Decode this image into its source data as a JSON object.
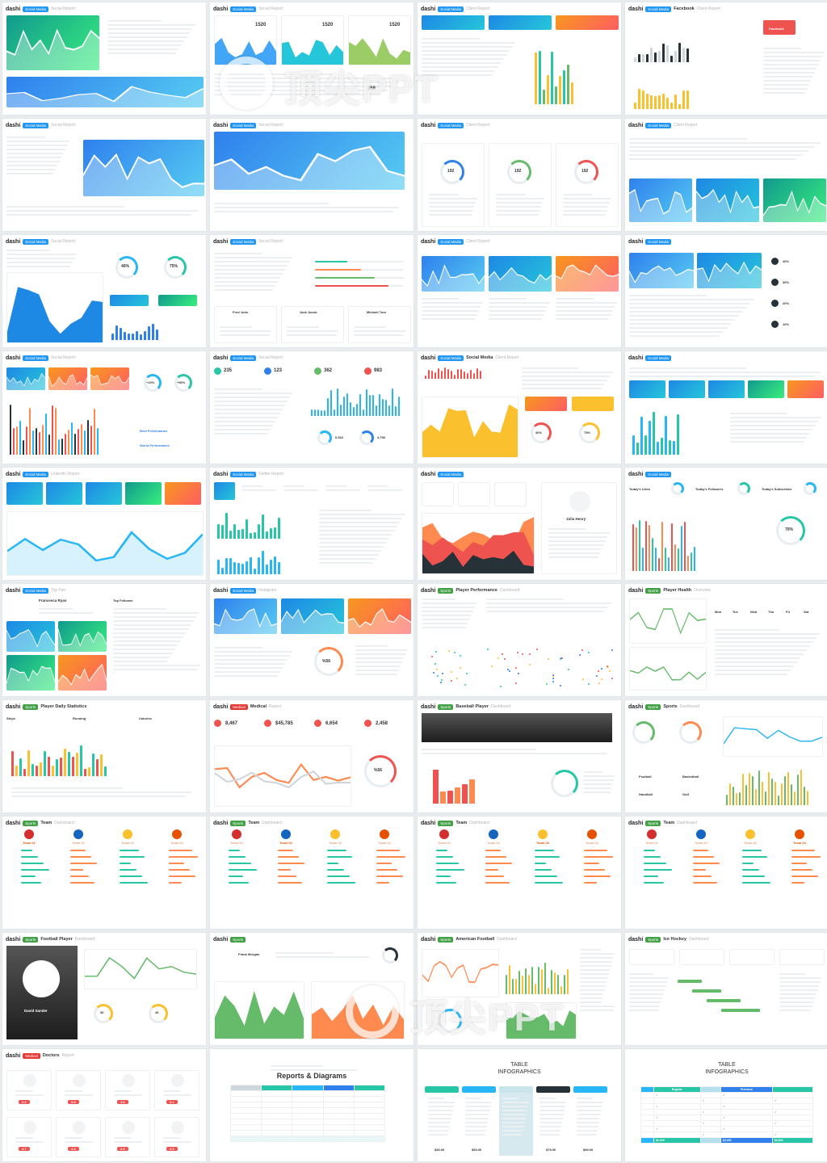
{
  "brand": "dashi",
  "watermark": {
    "text": "顶尖PPT"
  },
  "slides": [
    {
      "tag": "Social Media",
      "title": "",
      "subtitle": "Social Report",
      "kind": "gradient-lines",
      "theme": "teal"
    },
    {
      "tag": "Social Media",
      "title": "",
      "subtitle": "Social Report",
      "kind": "social-areas",
      "metrics": [
        "1520",
        "1520",
        "1520"
      ],
      "theme": "mixed",
      "extra": "358"
    },
    {
      "tag": "Social Media",
      "title": "",
      "subtitle": "Client Report",
      "kind": "kpi-bars",
      "theme": "blue"
    },
    {
      "tag": "Social Media",
      "title": "Facebook",
      "subtitle": "Client Report",
      "kind": "facebook",
      "theme": "red",
      "button": "Facebook"
    },
    {
      "tag": "Social Media",
      "title": "",
      "subtitle": "Social Report",
      "kind": "wave-panel",
      "theme": "sky"
    },
    {
      "tag": "Social Media",
      "title": "",
      "subtitle": "Social Report",
      "kind": "wave-panel-wide",
      "theme": "sky"
    },
    {
      "tag": "Social Media",
      "title": "",
      "subtitle": "Client Report",
      "kind": "rings-3",
      "values": [
        "192",
        "192",
        "192"
      ]
    },
    {
      "tag": "Social Media",
      "title": "",
      "subtitle": "Client Report",
      "kind": "table-3-panels",
      "theme": "mixed"
    },
    {
      "tag": "Social Media",
      "title": "",
      "subtitle": "Social Report",
      "kind": "area-rings",
      "values": [
        "40%",
        "75%"
      ]
    },
    {
      "tag": "Social Media",
      "title": "",
      "subtitle": "Social Report",
      "kind": "progress-list",
      "names": [
        "Fred John",
        "Jack Jacob",
        "Michael Tom"
      ]
    },
    {
      "tag": "Social Media",
      "title": "",
      "subtitle": "Client Report",
      "kind": "three-panels-list",
      "theme": "mixed"
    },
    {
      "tag": "Social Media",
      "title": "",
      "subtitle": "",
      "kind": "two-panels-icons",
      "theme": "sky",
      "values": [
        "40%",
        "30%",
        "20%",
        "10%"
      ]
    },
    {
      "tag": "Social Media",
      "title": "",
      "subtitle": "Social Report",
      "kind": "multi-bars",
      "values": [
        "+10%",
        "+50%"
      ],
      "labels": [
        "Best Performance",
        "Worst Performance"
      ]
    },
    {
      "tag": "Social Media",
      "title": "",
      "subtitle": "Social Report",
      "kind": "stat-cards",
      "values": [
        "235",
        "123",
        "362",
        "983"
      ],
      "small": [
        "6,542",
        "4,756"
      ]
    },
    {
      "tag": "Social Media",
      "title": "Social Media",
      "subtitle": "Client Report",
      "kind": "yellow-area",
      "values": [
        "40%",
        "75%"
      ]
    },
    {
      "tag": "Social Media",
      "title": "",
      "subtitle": "",
      "kind": "five-tiles",
      "theme": "mixed"
    },
    {
      "tag": "Social Media",
      "title": "",
      "subtitle": "LinkedIn Report",
      "kind": "five-tiles-wave"
    },
    {
      "tag": "Social Media",
      "title": "",
      "subtitle": "Twitter Report",
      "kind": "linkedin-bars"
    },
    {
      "tag": "Social Media",
      "title": "",
      "subtitle": "",
      "kind": "stacked-area",
      "name": "Julia Henry"
    },
    {
      "tag": "Social Media",
      "title": "",
      "subtitle": "",
      "kind": "today-rings",
      "labels": [
        "Today's Likes",
        "Today's Followers",
        "Today's Subscribes"
      ],
      "value": "70%"
    },
    {
      "tag": "Social Media",
      "title": "",
      "subtitle": "Top Fan",
      "kind": "fans",
      "name": "Francesca Ryan",
      "list_title": "Top Follower"
    },
    {
      "tag": "Social Media",
      "title": "",
      "subtitle": "Instagram",
      "kind": "three-areas-donut",
      "value": "%56"
    },
    {
      "tag": "Sports",
      "title": "Player Performance",
      "subtitle": "Dashboard",
      "kind": "scatter"
    },
    {
      "tag": "Sports",
      "title": "Player Health",
      "subtitle": "Overview",
      "kind": "health",
      "days": [
        "Mon",
        "Tue",
        "Wed",
        "Thu",
        "Fri",
        "Sat"
      ]
    },
    {
      "tag": "Sports",
      "title": "Player Daily Statistics",
      "subtitle": "",
      "kind": "daily-stats",
      "labels": [
        "Steps",
        "Running",
        "Calories"
      ]
    },
    {
      "tag": "Medical",
      "title": "Medical",
      "subtitle": "Report",
      "kind": "medical",
      "values": [
        "8,467",
        "$45,785",
        "6,654",
        "2,458"
      ],
      "donut": "%56"
    },
    {
      "tag": "Sports",
      "title": "Baseball Player",
      "subtitle": "Dashboard",
      "kind": "baseball"
    },
    {
      "tag": "Sports",
      "title": "Sports",
      "subtitle": "Dashboard",
      "kind": "sports",
      "labels": [
        "Football",
        "Basketball",
        "Handball",
        "Golf"
      ]
    },
    {
      "tag": "Sports",
      "title": "Team",
      "subtitle": "Dashboard",
      "kind": "team",
      "teams": [
        "Team 01",
        "Team 02",
        "Team 03",
        "Team 04"
      ],
      "highlight": 0
    },
    {
      "tag": "Sports",
      "title": "Team",
      "subtitle": "Dashboard",
      "kind": "team",
      "teams": [
        "Team 01",
        "Team 02",
        "Team 03",
        "Team 04"
      ],
      "highlight": 1
    },
    {
      "tag": "Sports",
      "title": "Team",
      "subtitle": "Dashboard",
      "kind": "team",
      "teams": [
        "Team 01",
        "Team 02",
        "Team 03",
        "Team 04"
      ],
      "highlight": 2
    },
    {
      "tag": "Sports",
      "title": "Team",
      "subtitle": "Dashboard",
      "kind": "team",
      "teams": [
        "Team 01",
        "Team 02",
        "Team 03",
        "Team 04"
      ],
      "highlight": 3
    },
    {
      "tag": "Sports",
      "title": "Football Player",
      "subtitle": "Dashboard",
      "kind": "football",
      "name": "David Sander",
      "values": [
        "30",
        "46"
      ]
    },
    {
      "tag": "Sports",
      "title": "",
      "subtitle": "",
      "kind": "player-areas",
      "name": "Frank Morgan"
    },
    {
      "tag": "Sports",
      "title": "American Football",
      "subtitle": "Dashboard",
      "kind": "am-football"
    },
    {
      "tag": "Sports",
      "title": "Ice Hockey",
      "subtitle": "Dashboard",
      "kind": "hockey"
    },
    {
      "tag": "Medical",
      "title": "Doctors",
      "subtitle": "Report",
      "kind": "doctors",
      "ratings": [
        "4.2",
        "3.8",
        "4.6",
        "3.1",
        "4.7",
        "4.3",
        "3.9",
        "4.3"
      ]
    },
    {
      "tag": "",
      "title": "Reports & Diagrams",
      "subtitle": "",
      "kind": "report-table",
      "headers": [
        "",
        "",
        "",
        ""
      ]
    },
    {
      "tag": "",
      "title": "TABLE",
      "subtitle": "INFOGRAPHICS",
      "kind": "infographic-a",
      "prices": [
        "$30.00",
        "$50.00",
        "$75.00",
        "$99.00"
      ]
    },
    {
      "tag": "",
      "title": "TABLE",
      "subtitle": "INFOGRAPHICS",
      "kind": "infographic-b",
      "headers": [
        "",
        "Regular",
        "",
        "Premium",
        ""
      ],
      "footer": [
        "",
        "$2,000",
        "",
        "$2,000",
        "$3,000"
      ]
    }
  ]
}
